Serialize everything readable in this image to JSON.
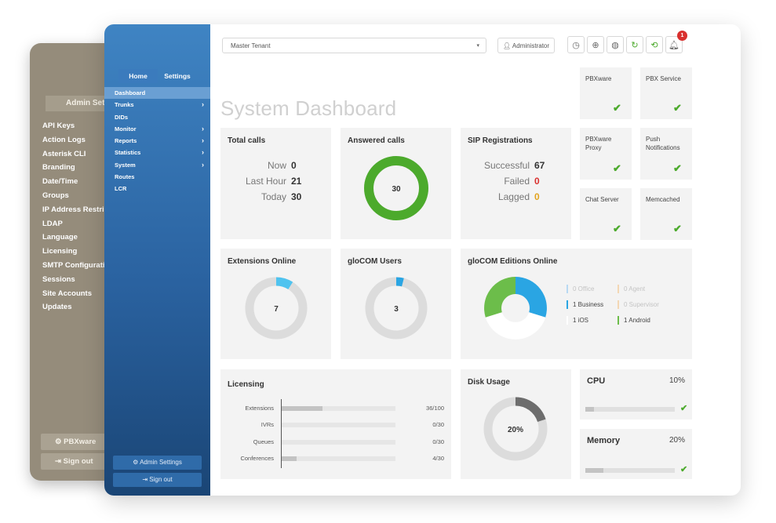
{
  "back_panel": {
    "tab": "Admin Settings",
    "items": [
      "API Keys",
      "Action Logs",
      "Asterisk CLI",
      "Branding",
      "Date/Time",
      "Groups",
      "IP Address Restrictions",
      "LDAP",
      "Language",
      "Licensing",
      "SMTP Configuration",
      "Sessions",
      "Site Accounts",
      "Updates"
    ],
    "pbxware_button": "PBXware",
    "signout_button": "Sign out"
  },
  "sidebar": {
    "tabs": [
      "Home",
      "Settings"
    ],
    "items": [
      {
        "label": "Dashboard",
        "has_submenu": false
      },
      {
        "label": "Trunks",
        "has_submenu": true
      },
      {
        "label": "DIDs",
        "has_submenu": false
      },
      {
        "label": "Monitor",
        "has_submenu": true
      },
      {
        "label": "Reports",
        "has_submenu": true
      },
      {
        "label": "Statistics",
        "has_submenu": true
      },
      {
        "label": "System",
        "has_submenu": true
      },
      {
        "label": "Routes",
        "has_submenu": false
      },
      {
        "label": "LCR",
        "has_submenu": false
      }
    ],
    "admin_settings_button": "Admin Settings",
    "signout_button": "Sign out"
  },
  "topbar": {
    "tenant_select": "Master Tenant",
    "user_button": "Administrator",
    "icons": [
      "clock-icon",
      "globe-icon",
      "world-icon",
      "refresh-icon",
      "sync-icon",
      "bell-icon"
    ],
    "notification_count": "1"
  },
  "page_title": "System Dashboard",
  "services": [
    {
      "name": "PBXware"
    },
    {
      "name": "PBX Service"
    },
    {
      "name": "PBXware Proxy"
    },
    {
      "name": "Push Notifications"
    },
    {
      "name": "Chat Server"
    },
    {
      "name": "Memcached"
    }
  ],
  "total_calls": {
    "title": "Total calls",
    "rows": [
      {
        "label": "Now",
        "value": "0"
      },
      {
        "label": "Last Hour",
        "value": "21"
      },
      {
        "label": "Today",
        "value": "30"
      }
    ]
  },
  "answered_calls": {
    "title": "Answered calls",
    "value": "30",
    "fraction": 1.0
  },
  "sip_registrations": {
    "title": "SIP Registrations",
    "rows": [
      {
        "label": "Successful",
        "value": "67",
        "color": "#333333"
      },
      {
        "label": "Failed",
        "value": "0",
        "color": "#d9302e"
      },
      {
        "label": "Lagged",
        "value": "0",
        "color": "#e2a31d"
      }
    ]
  },
  "extensions_online": {
    "title": "Extensions Online",
    "value": "7",
    "fraction": 0.09
  },
  "glocom_users": {
    "title": "gloCOM Users",
    "value": "3",
    "fraction": 0.04
  },
  "glocom_editions": {
    "title": "gloCOM Editions Online",
    "legend": [
      {
        "label": "0 Office",
        "color": "#b8d9f2",
        "active": false
      },
      {
        "label": "0 Agent",
        "color": "#f3d7b4",
        "active": false
      },
      {
        "label": "1 Business",
        "color": "#2aa5e3",
        "active": true
      },
      {
        "label": "0 Supervisor",
        "color": "#f3d7b4",
        "active": false
      },
      {
        "label": "1 iOS",
        "color": "#ffffff",
        "active": true
      },
      {
        "label": "1 Android",
        "color": "#6cbd4a",
        "active": true
      }
    ]
  },
  "licensing": {
    "title": "Licensing",
    "rows": [
      {
        "name": "Extensions",
        "count": "36/100",
        "fraction": 0.36
      },
      {
        "name": "IVRs",
        "count": "0/30",
        "fraction": 0
      },
      {
        "name": "Queues",
        "count": "0/30",
        "fraction": 0
      },
      {
        "name": "Conferences",
        "count": "4/30",
        "fraction": 0.133
      }
    ]
  },
  "disk_usage": {
    "title": "Disk Usage",
    "value": "20%",
    "fraction": 0.2
  },
  "cpu": {
    "title": "CPU",
    "value": "10%",
    "fraction": 0.1
  },
  "memory": {
    "title": "Memory",
    "value": "20%",
    "fraction": 0.2
  },
  "colors": {
    "accent_green": "#4caa2c",
    "ring_grey": "#dcdcdc",
    "ring_blue": "#4fc3ef",
    "disk_dark": "#6d6d6d"
  }
}
